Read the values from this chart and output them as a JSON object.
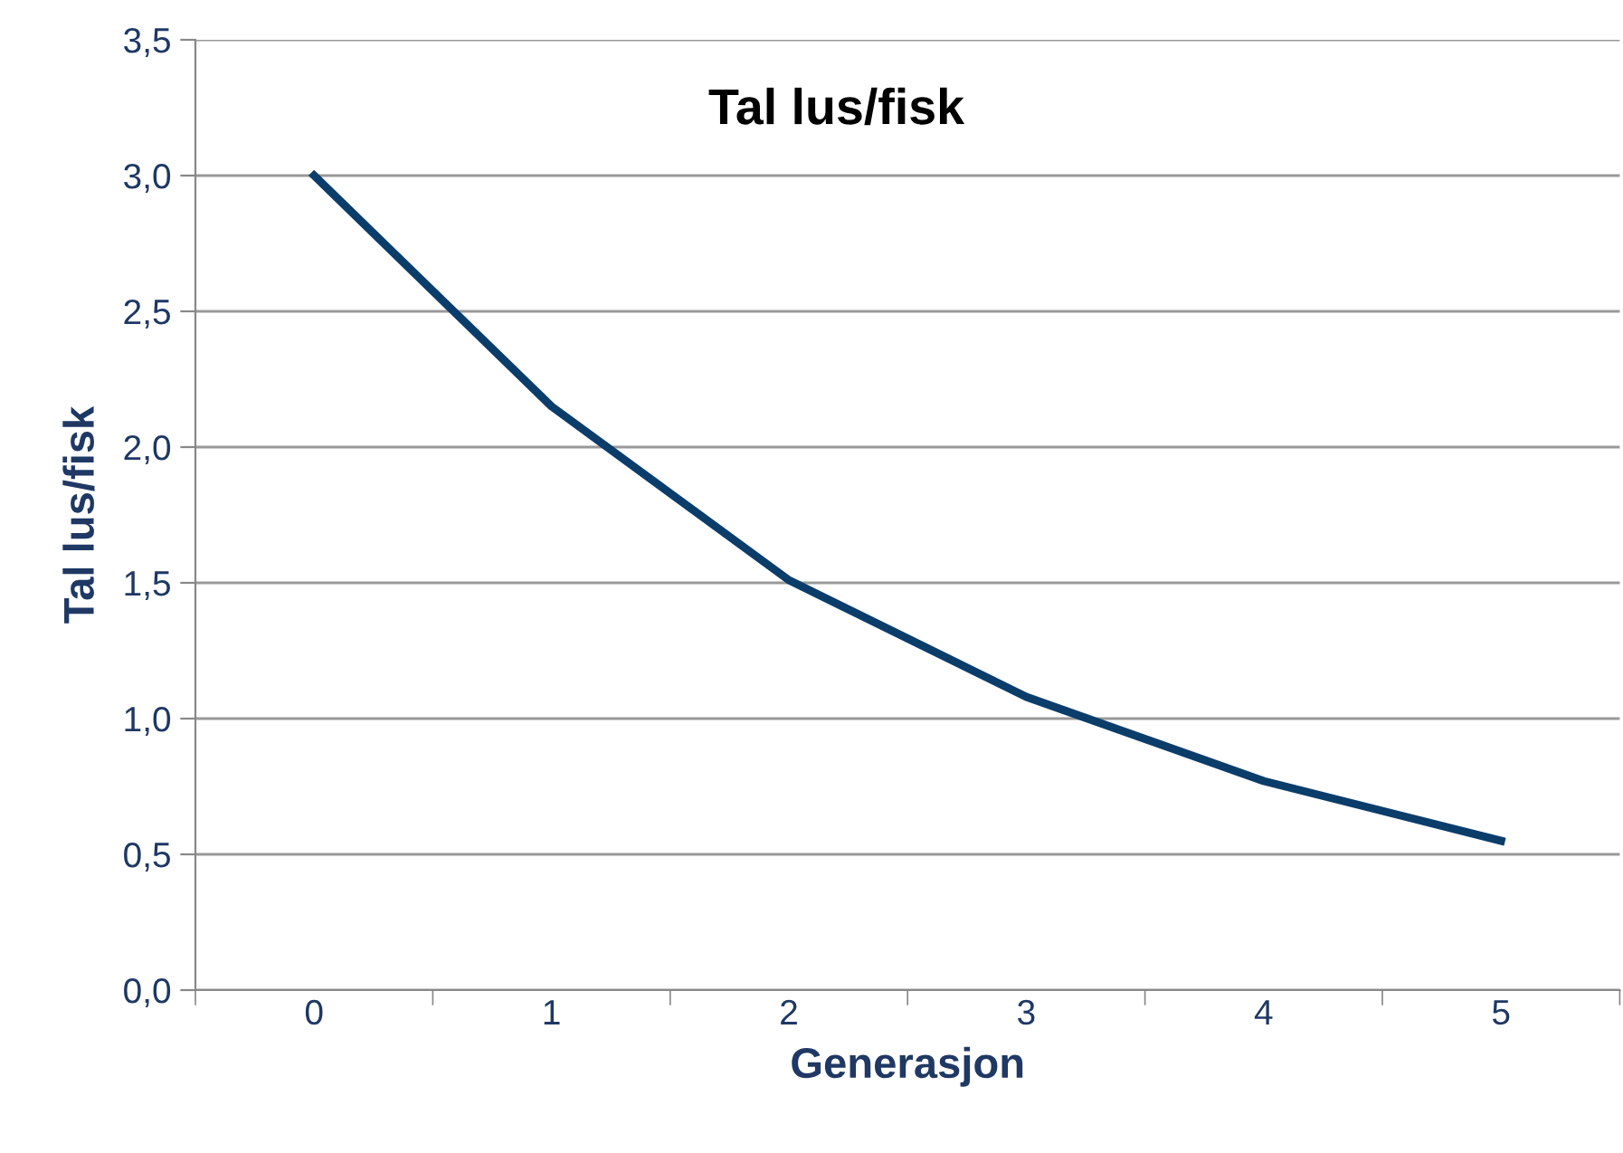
{
  "chart_data": {
    "type": "line",
    "title": "Tal lus/fisk",
    "xlabel": "Generasjon",
    "ylabel": "Tal lus/fisk",
    "categories": [
      "0",
      "1",
      "2",
      "3",
      "4",
      "5"
    ],
    "series": [
      {
        "color": "#0b3d6b",
        "values": [
          3.0,
          2.15,
          1.51,
          1.08,
          0.77,
          0.55
        ]
      }
    ],
    "ylim": [
      0,
      3.5
    ],
    "yticks": [
      {
        "value": 0,
        "label": "0,0"
      },
      {
        "value": 0.5,
        "label": "0,5"
      },
      {
        "value": 1.0,
        "label": "1,0"
      },
      {
        "value": 1.5,
        "label": "1,5"
      },
      {
        "value": 2.0,
        "label": "2,0"
      },
      {
        "value": 2.5,
        "label": "2,5"
      },
      {
        "value": 3.0,
        "label": "3,0"
      },
      {
        "value": 3.5,
        "label": "3,5"
      }
    ],
    "grid": "y",
    "marker": "none",
    "line_style": "solid",
    "legend": false
  }
}
